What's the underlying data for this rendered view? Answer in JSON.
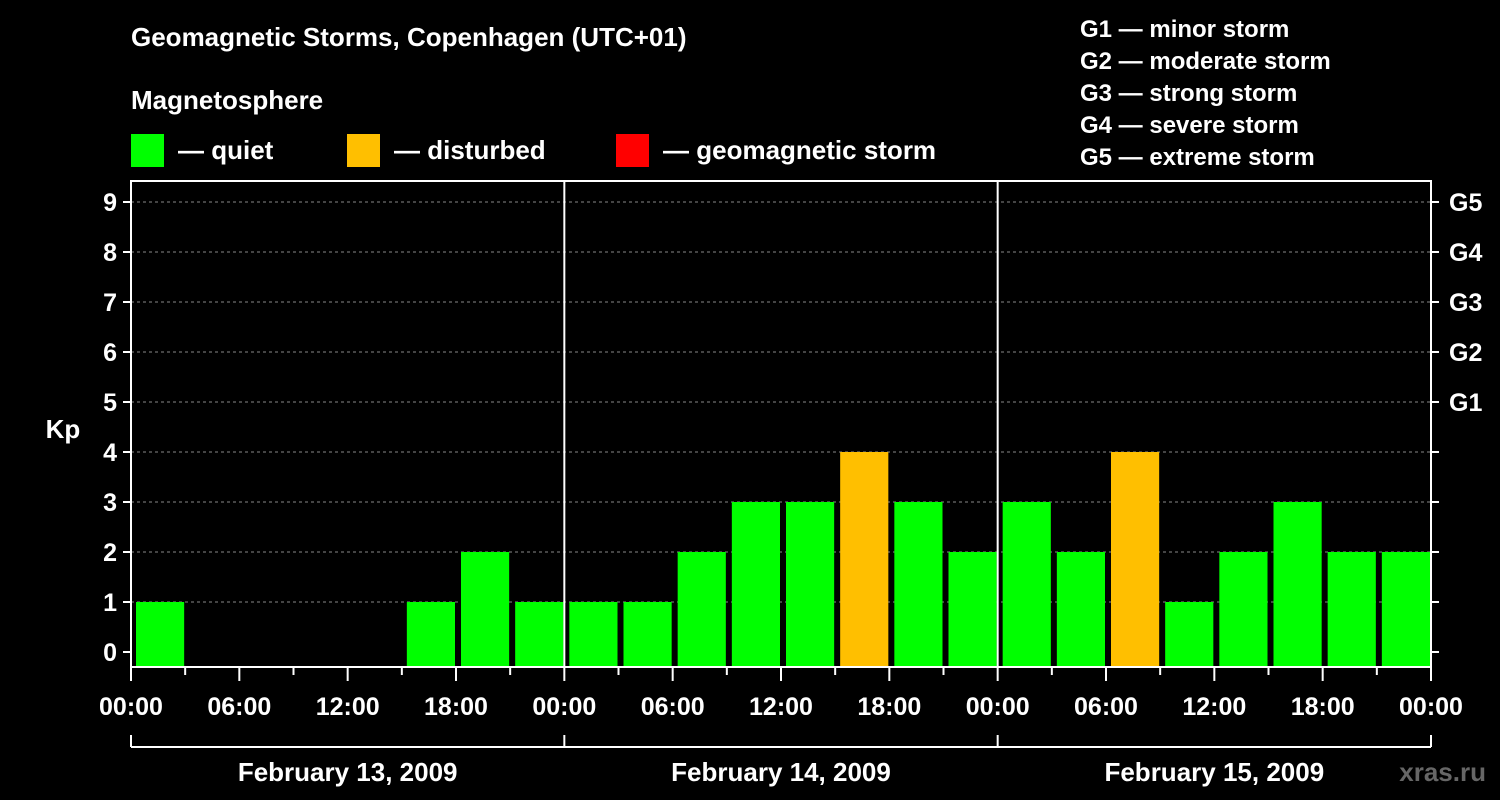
{
  "chart_data": {
    "type": "bar",
    "title": "Geomagnetic Storms, Copenhagen (UTC+01)",
    "subtitle": "Magnetosphere",
    "ylabel": "Kp",
    "ylim": [
      0,
      9
    ],
    "y_ticks": [
      "0",
      "1",
      "2",
      "3",
      "4",
      "5",
      "6",
      "7",
      "8",
      "9"
    ],
    "right_ticks": [
      {
        "kp": 5,
        "label": "G1"
      },
      {
        "kp": 6,
        "label": "G2"
      },
      {
        "kp": 7,
        "label": "G3"
      },
      {
        "kp": 8,
        "label": "G4"
      },
      {
        "kp": 9,
        "label": "G5"
      }
    ],
    "x_tick_labels": [
      "00:00",
      "06:00",
      "12:00",
      "18:00",
      "00:00",
      "06:00",
      "12:00",
      "18:00",
      "00:00",
      "06:00",
      "12:00",
      "18:00",
      "00:00"
    ],
    "days": [
      "February 13, 2009",
      "February 14, 2009",
      "February 15, 2009"
    ],
    "bins_per_day": 8,
    "values": [
      1,
      0,
      0,
      0,
      0,
      1,
      2,
      1,
      1,
      1,
      2,
      3,
      3,
      4,
      3,
      2,
      3,
      2,
      4,
      1,
      2,
      3,
      2,
      2
    ],
    "colors": {
      "quiet": "#00ff00",
      "disturbed": "#ffbf00",
      "storm": "#ff0000"
    },
    "thresholds": {
      "disturbed": 4,
      "storm": 5
    },
    "grid": true
  },
  "legend": {
    "quiet": "— quiet",
    "disturbed": "— disturbed",
    "storm": "— geomagnetic storm"
  },
  "g_scale": [
    "G1 — minor storm",
    "G2 — moderate storm",
    "G3 — strong storm",
    "G4 — severe storm",
    "G5 — extreme storm"
  ],
  "watermark": "xras.ru"
}
